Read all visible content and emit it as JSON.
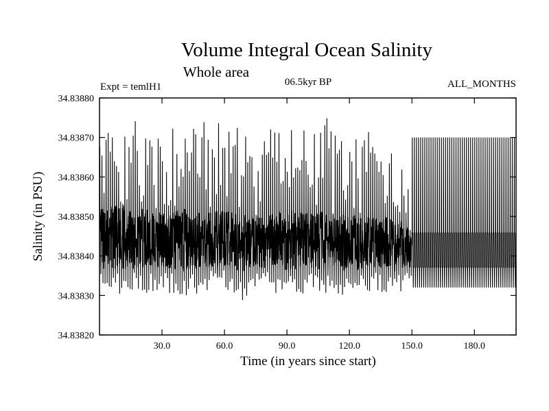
{
  "chart_data": {
    "type": "line",
    "title": "Volume Integral Ocean Salinity",
    "subtitle": "Whole area",
    "experiment_label": "Expt = temlH1",
    "period_label": "06.5kyr BP",
    "months_label": "ALL_MONTHS",
    "xlabel": "Time (in years since start)",
    "ylabel": "Salinity (in PSU)",
    "xlim": [
      0,
      200
    ],
    "ylim": [
      34.8382,
      34.8388
    ],
    "x_ticks": [
      30,
      60,
      90,
      120,
      150,
      180
    ],
    "x_tick_labels": [
      "30.0",
      "60.0",
      "90.0",
      "120.0",
      "150.0",
      "180.0"
    ],
    "y_ticks": [
      34.8382,
      34.8383,
      34.8384,
      34.8385,
      34.8386,
      34.8387,
      34.8388
    ],
    "y_tick_labels": [
      "34.83820",
      "34.83830",
      "34.83840",
      "34.83850",
      "34.83860",
      "34.83870",
      "34.83880"
    ],
    "grid": false,
    "series": [
      {
        "name": "Salinity",
        "description": "Monthly values oscillating seasonally; irregular amplitude until ~year 150, then a regular steady-state cycle",
        "envelope": {
          "years": [
            0,
            10,
            20,
            30,
            40,
            50,
            60,
            68,
            75,
            90,
            100,
            108,
            110,
            120,
            130,
            140,
            145,
            150,
            160,
            170,
            180,
            190,
            200
          ],
          "max": [
            34.83871,
            34.83873,
            34.83875,
            34.83874,
            34.83873,
            34.83874,
            34.83875,
            34.83873,
            34.83874,
            34.83873,
            34.83874,
            34.83876,
            34.83874,
            34.83873,
            34.83874,
            34.83872,
            34.83871,
            34.8387,
            34.8387,
            34.8387,
            34.8387,
            34.8387,
            34.8387
          ],
          "min": [
            34.83831,
            34.8383,
            34.8383,
            34.83831,
            34.8383,
            34.8383,
            34.83831,
            34.83828,
            34.8383,
            34.83831,
            34.8383,
            34.83831,
            34.8383,
            34.8383,
            34.83831,
            34.83829,
            34.83829,
            34.83832,
            34.83832,
            34.83832,
            34.83832,
            34.83832,
            34.83832
          ],
          "core_high": [
            34.83852,
            34.83853,
            34.83852,
            34.83851,
            34.83852,
            34.83851,
            34.83852,
            34.83851,
            34.8385,
            34.83852,
            34.83851,
            34.83852,
            34.8385,
            34.83851,
            34.8385,
            34.8385,
            34.83849,
            34.83846,
            34.83846,
            34.83846,
            34.83846,
            34.83846,
            34.83846
          ],
          "core_low": [
            34.83837,
            34.83836,
            34.83837,
            34.83837,
            34.83836,
            34.83837,
            34.83837,
            34.83836,
            34.83837,
            34.83836,
            34.83837,
            34.83836,
            34.83837,
            34.83836,
            34.83837,
            34.83836,
            34.83836,
            34.83837,
            34.83837,
            34.83837,
            34.83837,
            34.83837,
            34.83837
          ]
        }
      }
    ]
  }
}
